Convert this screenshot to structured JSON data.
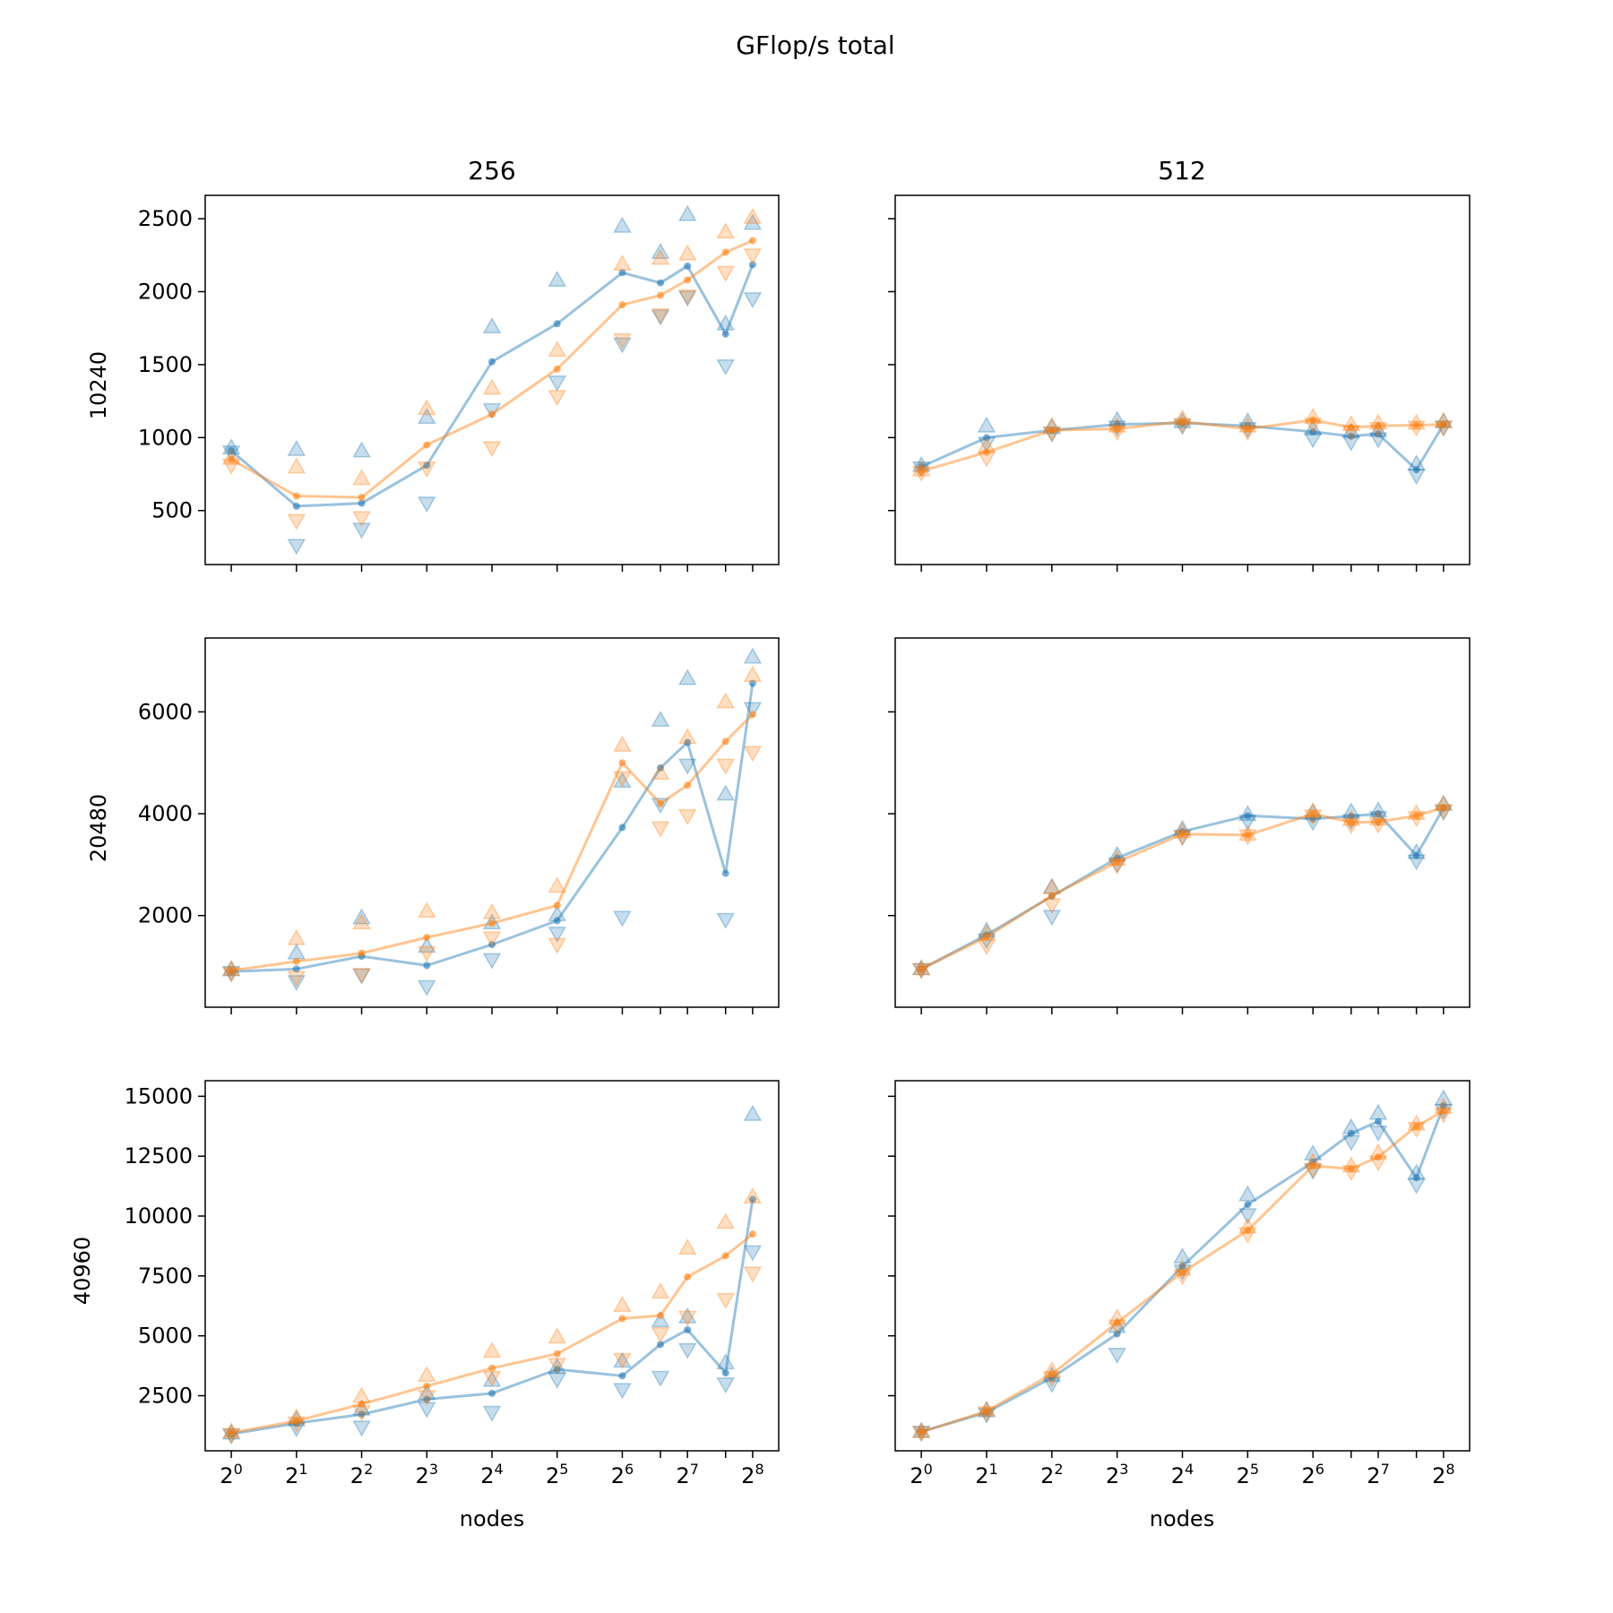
{
  "figure": {
    "title": "GFlop/s total",
    "col_titles": [
      "256",
      "512"
    ],
    "row_labels": [
      "10240",
      "20480",
      "40960"
    ],
    "xlabel": "nodes",
    "colors": {
      "series_a": "#1f77b4",
      "series_b": "#ff7f0e"
    }
  },
  "chart_data": [
    {
      "type": "line",
      "row_label": "10240",
      "col_title": "256",
      "x": [
        1,
        2,
        4,
        8,
        16,
        32,
        64,
        96,
        128,
        192,
        256
      ],
      "xscale": "log2",
      "xticks": [
        "2^0",
        "2^1",
        "2^2",
        "2^3",
        "2^4",
        "2^5",
        "2^6",
        "2^7",
        "2^8"
      ],
      "yticks": [
        500,
        1000,
        1500,
        2000,
        2500
      ],
      "ylim": [
        130,
        2660
      ],
      "series": [
        {
          "mean": [
            910,
            530,
            550,
            810,
            1520,
            1780,
            2130,
            2060,
            2175,
            1710,
            2185
          ],
          "max": [
            930,
            920,
            910,
            1140,
            1760,
            2080,
            2450,
            2270,
            2530,
            1780,
            2470
          ],
          "min": [
            900,
            260,
            370,
            550,
            1190,
            1380,
            1640,
            1830,
            1960,
            1490,
            1950
          ]
        },
        {
          "mean": [
            850,
            600,
            590,
            950,
            1160,
            1470,
            1910,
            1975,
            2080,
            2270,
            2350
          ],
          "max": [
            860,
            800,
            720,
            1200,
            1340,
            1600,
            2190,
            2230,
            2260,
            2410,
            2510
          ],
          "min": [
            810,
            430,
            450,
            790,
            930,
            1280,
            1670,
            1840,
            1970,
            2130,
            2250
          ]
        }
      ]
    },
    {
      "type": "line",
      "row_label": "10240",
      "col_title": "512",
      "x": [
        1,
        2,
        4,
        8,
        16,
        32,
        64,
        96,
        128,
        192,
        256
      ],
      "xscale": "log2",
      "xticks": [
        "2^0",
        "2^1",
        "2^2",
        "2^3",
        "2^4",
        "2^5",
        "2^6",
        "2^7",
        "2^8"
      ],
      "yticks": [
        500,
        1000,
        1500,
        2000,
        2500
      ],
      "ylim": [
        130,
        2660
      ],
      "series": [
        {
          "mean": [
            800,
            1000,
            1050,
            1090,
            1100,
            1080,
            1040,
            1010,
            1025,
            780,
            1090
          ],
          "max": [
            810,
            1080,
            1070,
            1120,
            1110,
            1110,
            1060,
            1040,
            1050,
            820,
            1110
          ],
          "min": [
            790,
            960,
            1030,
            1070,
            1080,
            1060,
            990,
            970,
            990,
            740,
            1070
          ]
        },
        {
          "mean": [
            770,
            900,
            1050,
            1060,
            1110,
            1060,
            1120,
            1070,
            1080,
            1085,
            1090
          ],
          "max": [
            780,
            940,
            1080,
            1080,
            1130,
            1080,
            1140,
            1090,
            1100,
            1100,
            1110
          ],
          "min": [
            760,
            860,
            1030,
            1040,
            1090,
            1040,
            1090,
            1040,
            1060,
            1070,
            1070
          ]
        }
      ]
    },
    {
      "type": "line",
      "row_label": "20480",
      "col_title": "256",
      "x": [
        1,
        2,
        4,
        8,
        16,
        32,
        64,
        96,
        128,
        192,
        256
      ],
      "xscale": "log2",
      "xticks": [
        "2^0",
        "2^1",
        "2^2",
        "2^3",
        "2^4",
        "2^5",
        "2^6",
        "2^7",
        "2^8"
      ],
      "yticks": [
        2000,
        4000,
        6000
      ],
      "ylim": [
        200,
        7450
      ],
      "series": [
        {
          "mean": [
            900,
            950,
            1200,
            1020,
            1430,
            1900,
            3730,
            4900,
            5400,
            2830,
            6560
          ],
          "max": [
            940,
            1270,
            1960,
            1400,
            1860,
            2020,
            4640,
            5840,
            6660,
            4390,
            7080
          ],
          "min": [
            880,
            700,
            830,
            600,
            1130,
            1650,
            1960,
            4180,
            4950,
            1920,
            6060
          ]
        },
        {
          "mean": [
            920,
            1100,
            1260,
            1570,
            1850,
            2200,
            5000,
            4200,
            4560,
            5420,
            5950
          ],
          "max": [
            950,
            1550,
            1860,
            2090,
            2060,
            2580,
            5350,
            4800,
            5500,
            6200,
            6720
          ],
          "min": [
            860,
            780,
            840,
            1270,
            1560,
            1430,
            4700,
            3720,
            3960,
            4950,
            5200
          ]
        }
      ]
    },
    {
      "type": "line",
      "row_label": "20480",
      "col_title": "512",
      "x": [
        1,
        2,
        4,
        8,
        16,
        32,
        64,
        96,
        128,
        192,
        256
      ],
      "xscale": "log2",
      "xticks": [
        "2^0",
        "2^1",
        "2^2",
        "2^3",
        "2^4",
        "2^5",
        "2^6",
        "2^7",
        "2^8"
      ],
      "yticks": [
        2000,
        4000,
        6000
      ],
      "ylim": [
        200,
        7450
      ],
      "series": [
        {
          "mean": [
            950,
            1620,
            2380,
            3130,
            3650,
            3960,
            3900,
            3950,
            4000,
            3180,
            4110
          ],
          "max": [
            960,
            1700,
            2560,
            3190,
            3700,
            3990,
            4020,
            4040,
            4060,
            3240,
            4190
          ],
          "min": [
            940,
            1520,
            1980,
            3010,
            3550,
            3850,
            3840,
            3860,
            3920,
            3070,
            4040
          ]
        },
        {
          "mean": [
            950,
            1580,
            2390,
            3050,
            3600,
            3580,
            4000,
            3830,
            3840,
            3960,
            4120
          ],
          "max": [
            960,
            1650,
            2550,
            3110,
            3650,
            3600,
            4050,
            3890,
            3900,
            4010,
            4190
          ],
          "min": [
            930,
            1400,
            2210,
            2990,
            3550,
            3560,
            3950,
            3780,
            3790,
            3920,
            4060
          ]
        }
      ]
    },
    {
      "type": "line",
      "row_label": "40960",
      "col_title": "256",
      "x": [
        1,
        2,
        4,
        8,
        16,
        32,
        64,
        96,
        128,
        192,
        256
      ],
      "xscale": "log2",
      "xticks": [
        "2^0",
        "2^1",
        "2^2",
        "2^3",
        "2^4",
        "2^5",
        "2^6",
        "2^7",
        "2^8"
      ],
      "yticks": [
        2500,
        5000,
        7500,
        10000,
        12500,
        15000
      ],
      "ylim": [
        200,
        15650
      ],
      "series": [
        {
          "mean": [
            900,
            1350,
            1720,
            2350,
            2600,
            3600,
            3330,
            4640,
            5250,
            3450,
            10700
          ],
          "max": [
            950,
            1500,
            1950,
            2600,
            3150,
            3700,
            3950,
            5640,
            5800,
            3880,
            14250
          ],
          "min": [
            850,
            1150,
            1180,
            1960,
            1800,
            3180,
            2750,
            3260,
            4420,
            2980,
            8500
          ]
        },
        {
          "mean": [
            950,
            1450,
            2150,
            2900,
            3650,
            4250,
            5720,
            5850,
            7460,
            8340,
            9250
          ],
          "max": [
            1000,
            1600,
            2480,
            3360,
            4360,
            4960,
            6280,
            6830,
            8670,
            9750,
            10800
          ],
          "min": [
            880,
            1350,
            1830,
            2460,
            3250,
            3800,
            4000,
            5080,
            5770,
            6510,
            7610
          ]
        }
      ]
    },
    {
      "type": "line",
      "row_label": "40960",
      "col_title": "512",
      "x": [
        1,
        2,
        4,
        8,
        16,
        32,
        64,
        96,
        128,
        192,
        256
      ],
      "xscale": "log2",
      "xticks": [
        "2^0",
        "2^1",
        "2^2",
        "2^3",
        "2^4",
        "2^5",
        "2^6",
        "2^7",
        "2^8"
      ],
      "yticks": [
        2500,
        5000,
        7500,
        10000,
        12500,
        15000
      ],
      "ylim": [
        200,
        15650
      ],
      "series": [
        {
          "mean": [
            1000,
            1800,
            3250,
            5080,
            7900,
            10480,
            12250,
            13450,
            13950,
            11600,
            14600
          ],
          "max": [
            1030,
            1880,
            3350,
            5400,
            8300,
            10900,
            12600,
            13700,
            14300,
            11800,
            14900
          ],
          "min": [
            970,
            1720,
            3000,
            4220,
            7700,
            10050,
            11900,
            13100,
            13500,
            11300,
            14400
          ]
        },
        {
          "mean": [
            980,
            1860,
            3400,
            5550,
            7650,
            9400,
            12100,
            11970,
            12460,
            13750,
            14380
          ],
          "max": [
            1010,
            1920,
            3550,
            5750,
            7800,
            9550,
            12250,
            12100,
            12650,
            13850,
            14550
          ],
          "min": [
            950,
            1780,
            3250,
            5400,
            7500,
            9250,
            11950,
            11850,
            12250,
            13650,
            14250
          ]
        }
      ]
    }
  ]
}
